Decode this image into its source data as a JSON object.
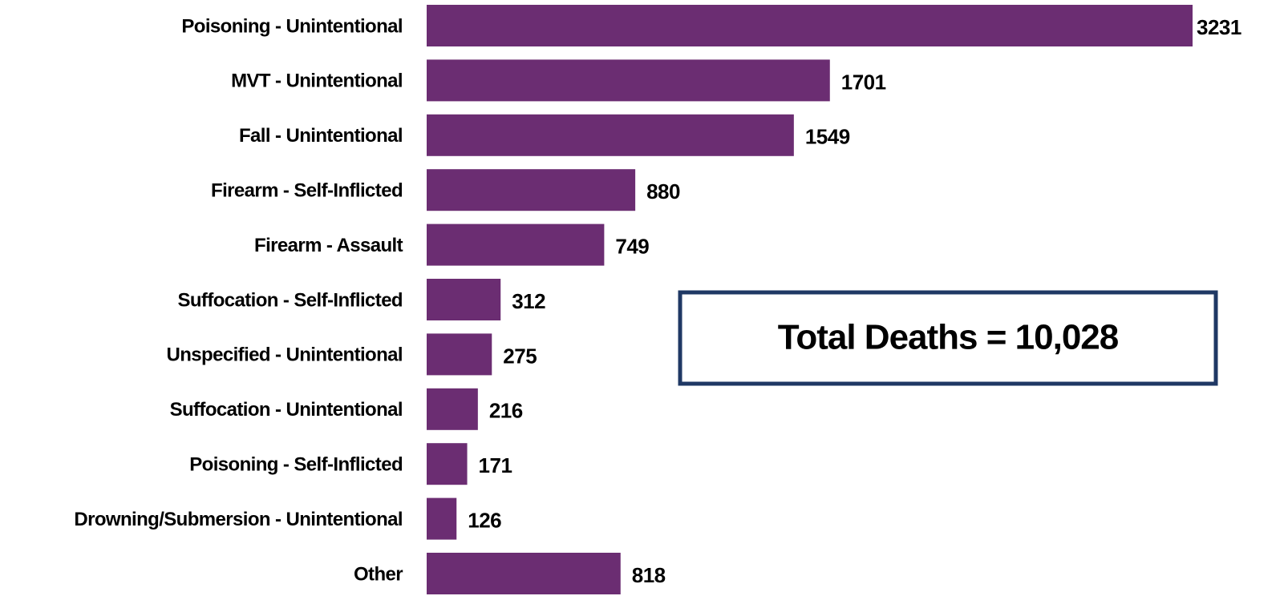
{
  "chart_data": {
    "type": "bar",
    "orientation": "horizontal",
    "categories": [
      "Poisoning - Unintentional",
      "MVT - Unintentional",
      "Fall - Unintentional",
      "Firearm - Self-Inflicted",
      "Firearm - Assault",
      "Suffocation - Self-Inflicted",
      "Unspecified - Unintentional",
      "Suffocation - Unintentional",
      "Poisoning - Self-Inflicted",
      "Drowning/Submersion - Unintentional",
      "Other"
    ],
    "values": [
      3231,
      1701,
      1549,
      880,
      749,
      312,
      275,
      216,
      171,
      126,
      818
    ],
    "color": "#6b2d72",
    "annotation": "Total Deaths = 10,028"
  }
}
